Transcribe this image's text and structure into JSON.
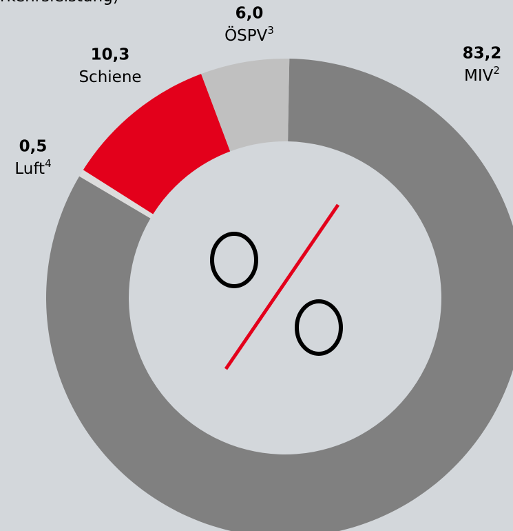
{
  "chart_data": {
    "type": "pie",
    "title": "rkehrsleistung)",
    "categories": [
      "MIV",
      "Luft",
      "Schiene",
      "ÖSPV"
    ],
    "footnotes": [
      "2",
      "4",
      null,
      "3"
    ],
    "values": [
      83.2,
      0.5,
      10.3,
      6.0
    ],
    "value_labels": [
      "83,2",
      "0,5",
      "10,3",
      "6,0"
    ],
    "colors": [
      "#808080",
      "#dcdcdc",
      "#e3001b",
      "#c0c0c0"
    ],
    "donut": true
  }
}
